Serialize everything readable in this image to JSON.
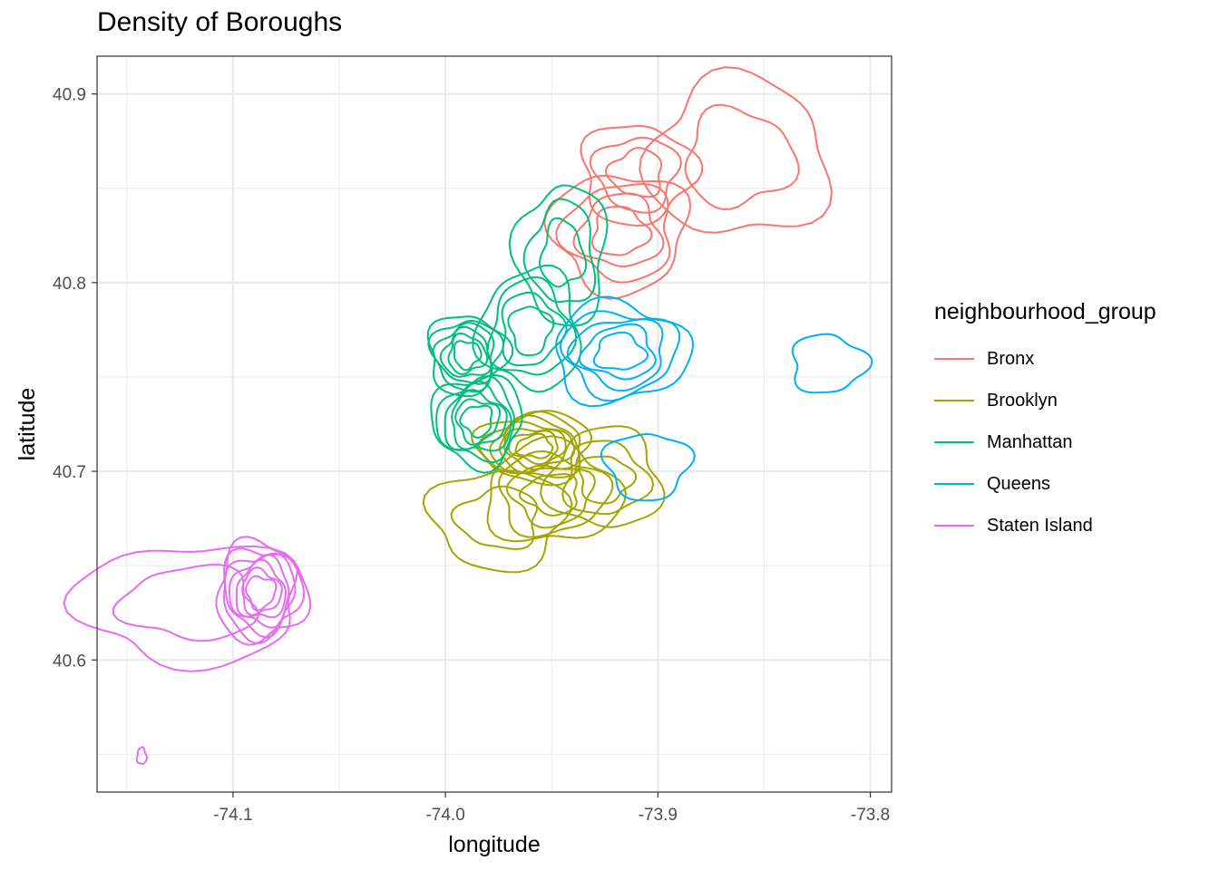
{
  "title": "Density of Boroughs",
  "legend": {
    "title": "neighbourhood_group",
    "items": [
      {
        "label": "Bronx",
        "color": "#F8766D"
      },
      {
        "label": "Brooklyn",
        "color": "#A3A500"
      },
      {
        "label": "Manhattan",
        "color": "#00BF7D"
      },
      {
        "label": "Queens",
        "color": "#00B0F6"
      },
      {
        "label": "Staten Island",
        "color": "#E76BF3"
      }
    ]
  },
  "chart_data": {
    "type": "contour density",
    "title": "Density of Boroughs",
    "xlabel": "longitude",
    "ylabel": "latitude",
    "xlim": [
      -74.164,
      -73.79
    ],
    "ylim": [
      40.53,
      40.92
    ],
    "xticks": [
      -74.1,
      -74.0,
      -73.9,
      -73.8
    ],
    "xtick_labels": [
      "-74.1",
      "-74.0",
      "-73.9",
      "-73.8"
    ],
    "yticks": [
      40.6,
      40.7,
      40.8,
      40.9
    ],
    "ytick_labels": [
      "40.6",
      "40.7",
      "40.8",
      "40.9"
    ],
    "grid": true,
    "legend_position": "right",
    "series": [
      {
        "name": "Bronx",
        "peaks": [
          {
            "x": -73.918,
            "y": 40.827,
            "sx": 0.012,
            "sy": 0.012,
            "levels": 4
          },
          {
            "x": -73.91,
            "y": 40.858,
            "sx": 0.01,
            "sy": 0.01,
            "levels": 3
          },
          {
            "x": -73.862,
            "y": 40.866,
            "sx": 0.016,
            "sy": 0.016,
            "levels": 2
          }
        ]
      },
      {
        "name": "Brooklyn",
        "peaks": [
          {
            "x": -73.958,
            "y": 40.713,
            "sx": 0.01,
            "sy": 0.007,
            "levels": 7
          },
          {
            "x": -73.95,
            "y": 40.688,
            "sx": 0.012,
            "sy": 0.01,
            "levels": 4
          },
          {
            "x": -73.925,
            "y": 40.696,
            "sx": 0.01,
            "sy": 0.01,
            "levels": 3
          },
          {
            "x": -73.975,
            "y": 40.675,
            "sx": 0.012,
            "sy": 0.01,
            "levels": 2
          }
        ]
      },
      {
        "name": "Manhattan",
        "peaks": [
          {
            "x": -73.99,
            "y": 40.762,
            "sx": 0.007,
            "sy": 0.008,
            "levels": 6
          },
          {
            "x": -73.985,
            "y": 40.727,
            "sx": 0.008,
            "sy": 0.009,
            "levels": 6
          },
          {
            "x": -73.96,
            "y": 40.775,
            "sx": 0.009,
            "sy": 0.012,
            "levels": 4
          },
          {
            "x": -73.945,
            "y": 40.815,
            "sx": 0.008,
            "sy": 0.014,
            "levels": 3
          }
        ]
      },
      {
        "name": "Queens",
        "peaks": [
          {
            "x": -73.918,
            "y": 40.763,
            "sx": 0.012,
            "sy": 0.01,
            "levels": 5
          },
          {
            "x": -73.82,
            "y": 40.757,
            "sx": 0.008,
            "sy": 0.007,
            "levels": 1
          },
          {
            "x": -73.905,
            "y": 40.703,
            "sx": 0.009,
            "sy": 0.008,
            "levels": 1
          }
        ]
      },
      {
        "name": "Staten Island",
        "peaks": [
          {
            "x": -74.087,
            "y": 40.636,
            "sx": 0.008,
            "sy": 0.01,
            "levels": 7
          },
          {
            "x": -74.12,
            "y": 40.63,
            "sx": 0.02,
            "sy": 0.012,
            "levels": 2
          },
          {
            "x": -74.143,
            "y": 40.549,
            "sx": 0.001,
            "sy": 0.002,
            "levels": 1
          }
        ]
      }
    ]
  }
}
